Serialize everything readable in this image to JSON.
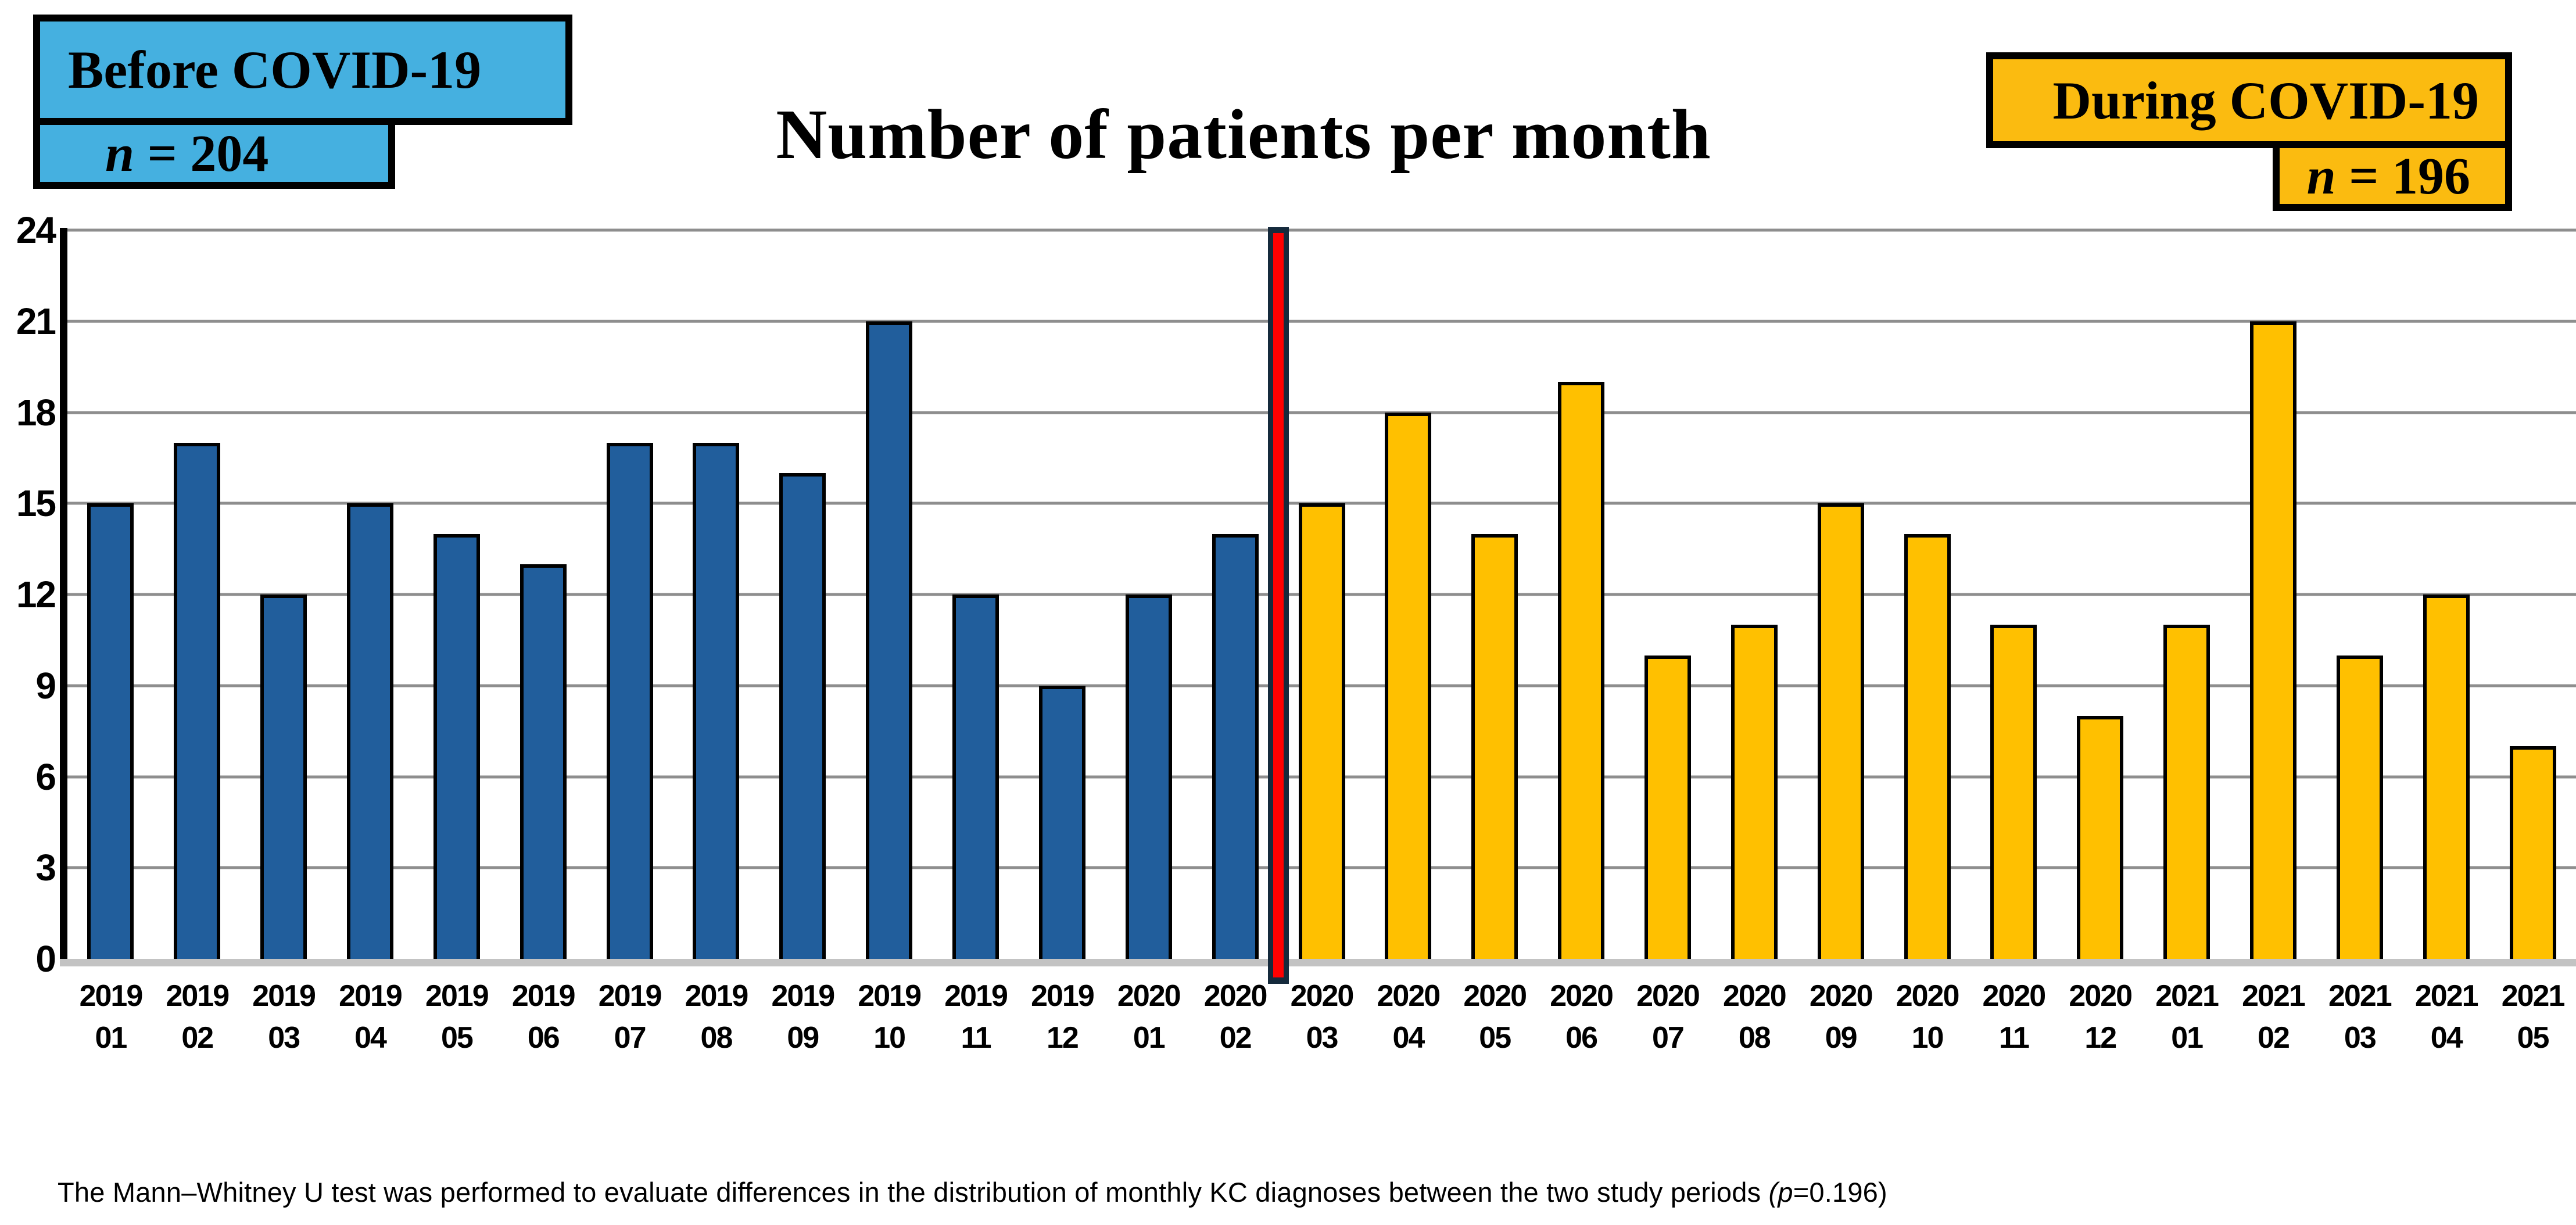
{
  "title": "Number of patients per month",
  "legend": {
    "before": {
      "label": "Before COVID-19",
      "n_italic": "n",
      "n_rest": " = 204"
    },
    "during": {
      "label": "During COVID-19",
      "n_italic": "n",
      "n_rest": " = 196"
    }
  },
  "caption": {
    "prefix": "The Mann–Whitney U test was performed to evaluate differences in the distribution of monthly KC diagnoses between the two study periods ",
    "p_italic": "(p",
    "suffix": "=0.196)"
  },
  "colors": {
    "before_bar": "#215E9C",
    "during_bar": "#FFC000",
    "before_legend": "#45B0E0",
    "during_legend": "#FBBB10",
    "divider_red": "#FF0000",
    "divider_border": "#152A3C",
    "gridline": "#8E8E8E",
    "baseline": "#C3C3C3"
  },
  "chart_data": {
    "type": "bar",
    "title": "Number of patients per month",
    "categories": [
      "2019 01",
      "2019 02",
      "2019 03",
      "2019 04",
      "2019 05",
      "2019 06",
      "2019 07",
      "2019 08",
      "2019 09",
      "2019 10",
      "2019 11",
      "2019 12",
      "2020 01",
      "2020 02",
      "2020 03",
      "2020 04",
      "2020 05",
      "2020 06",
      "2020 07",
      "2020 08",
      "2020 09",
      "2020 10",
      "2020 11",
      "2020 12",
      "2021 01",
      "2021 02",
      "2021 03",
      "2021 04",
      "2021 05"
    ],
    "series": [
      {
        "name": "Before COVID-19",
        "n": 204,
        "color": "#215E9C",
        "values": [
          15,
          17,
          12,
          15,
          14,
          13,
          17,
          17,
          16,
          21,
          12,
          9,
          12,
          14,
          null,
          null,
          null,
          null,
          null,
          null,
          null,
          null,
          null,
          null,
          null,
          null,
          null,
          null,
          null
        ]
      },
      {
        "name": "During COVID-19",
        "n": 196,
        "color": "#FFC000",
        "values": [
          null,
          null,
          null,
          null,
          null,
          null,
          null,
          null,
          null,
          null,
          null,
          null,
          null,
          null,
          15,
          18,
          14,
          19,
          10,
          11,
          15,
          14,
          11,
          8,
          11,
          21,
          10,
          12,
          7
        ]
      }
    ],
    "ylabel": "",
    "xlabel": "",
    "yticks": [
      0,
      3,
      6,
      9,
      12,
      15,
      18,
      21,
      24
    ],
    "ylim": [
      0,
      24
    ],
    "grid": true,
    "legend_position": "top-corners",
    "divider_between": [
      "2020 02",
      "2020 03"
    ]
  }
}
